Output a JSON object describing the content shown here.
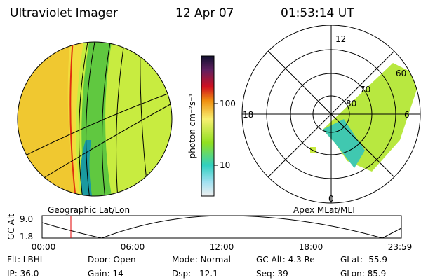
{
  "header": {
    "instrument": "Ultraviolet Imager",
    "date": "12 Apr 07",
    "time": "01:53:14 UT"
  },
  "colorbar": {
    "unit": "photon cm⁻²s⁻¹",
    "labels": [
      "100",
      "10"
    ]
  },
  "polar": {
    "mlt_labels": [
      "12",
      "18",
      "6",
      "0"
    ],
    "mlat_labels": [
      "60",
      "70",
      "80"
    ]
  },
  "captions": {
    "left": "Geographic Lat/Lon",
    "right": "Apex MLat/MLT"
  },
  "altitude_plot": {
    "ylabel": "GC Alt",
    "yticks": [
      "9.0",
      "1.8"
    ],
    "xticks": [
      "00:00",
      "06:00",
      "12:00",
      "18:00",
      "23:59"
    ]
  },
  "info": {
    "rows": [
      [
        "Flt: LBHL",
        "Door: Open",
        "Mode: Normal",
        "GC Alt: 4.3 Re",
        "GLat: -55.9"
      ],
      [
        "IP: 36.0",
        "Gain: 14",
        "Dsp:  -12.1",
        "Seq: 39",
        "GLon: 85.9"
      ]
    ]
  }
}
